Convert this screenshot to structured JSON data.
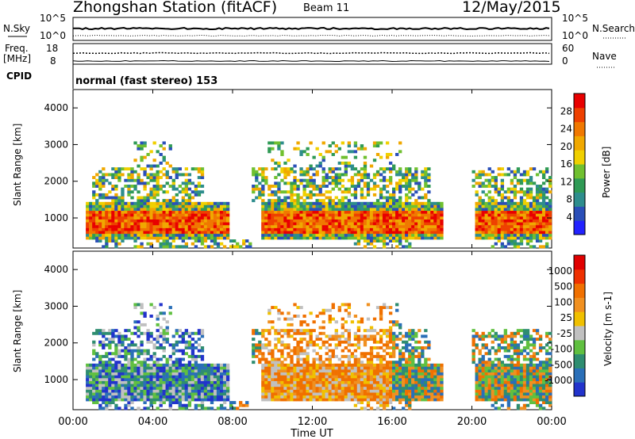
{
  "header": {
    "station": "Zhongshan Station (fitACF)",
    "beam": "Beam 11",
    "date": "12/May/2015"
  },
  "top_panels": {
    "nsky_label": "N.Sky",
    "nsky_ticks": [
      "10^5",
      "10^0"
    ],
    "nsearch_label": "N.Search",
    "nsearch_ticks": [
      "10^5",
      "10^0"
    ],
    "freq_label": "Freq.",
    "freq_unit": "[MHz]",
    "freq_ticks": [
      "18",
      "8"
    ],
    "nave_label": "Nave",
    "nave_ticks": [
      "60",
      "0"
    ],
    "cpid_label": "CPID",
    "cpid_value": "normal (fast stereo) 153"
  },
  "chart_data": [
    {
      "type": "heatmap",
      "name": "power",
      "ylabel": "Slant Range [km]",
      "ylim": [
        180,
        4500
      ],
      "yticks": [
        "4000",
        "3000",
        "2000",
        "1000"
      ],
      "xlim": [
        0,
        24
      ],
      "colorbar": {
        "label": "Power [dB]",
        "ticks": [
          "28",
          "24",
          "20",
          "16",
          "12",
          "8",
          "4"
        ],
        "colors": [
          "#2222ff",
          "#2a4fb8",
          "#2e8d8d",
          "#2f9a55",
          "#70c030",
          "#f0d000",
          "#f0a800",
          "#f07800",
          "#ee4000",
          "#e80000"
        ]
      }
    },
    {
      "type": "heatmap",
      "name": "velocity",
      "ylabel": "Slant Range [km]",
      "ylim": [
        180,
        4500
      ],
      "yticks": [
        "4000",
        "3000",
        "2000",
        "1000"
      ],
      "xlim": [
        0,
        24
      ],
      "colorbar": {
        "label": "Velocity [m s-1]",
        "ticks": [
          "1000",
          "500",
          "100",
          "25",
          "-25",
          "-100",
          "-500",
          "-1000"
        ],
        "colors": [
          "#2233cc",
          "#2a6fb8",
          "#2e8d70",
          "#60c040",
          "#c0c0c0",
          "#f0c000",
          "#f09020",
          "#f07000",
          "#ee3000",
          "#e00000"
        ]
      }
    }
  ],
  "x_axis": {
    "ticks": [
      "00:00",
      "04:00",
      "08:00",
      "12:00",
      "16:00",
      "20:00",
      "00:00"
    ],
    "label": "Time UT"
  }
}
